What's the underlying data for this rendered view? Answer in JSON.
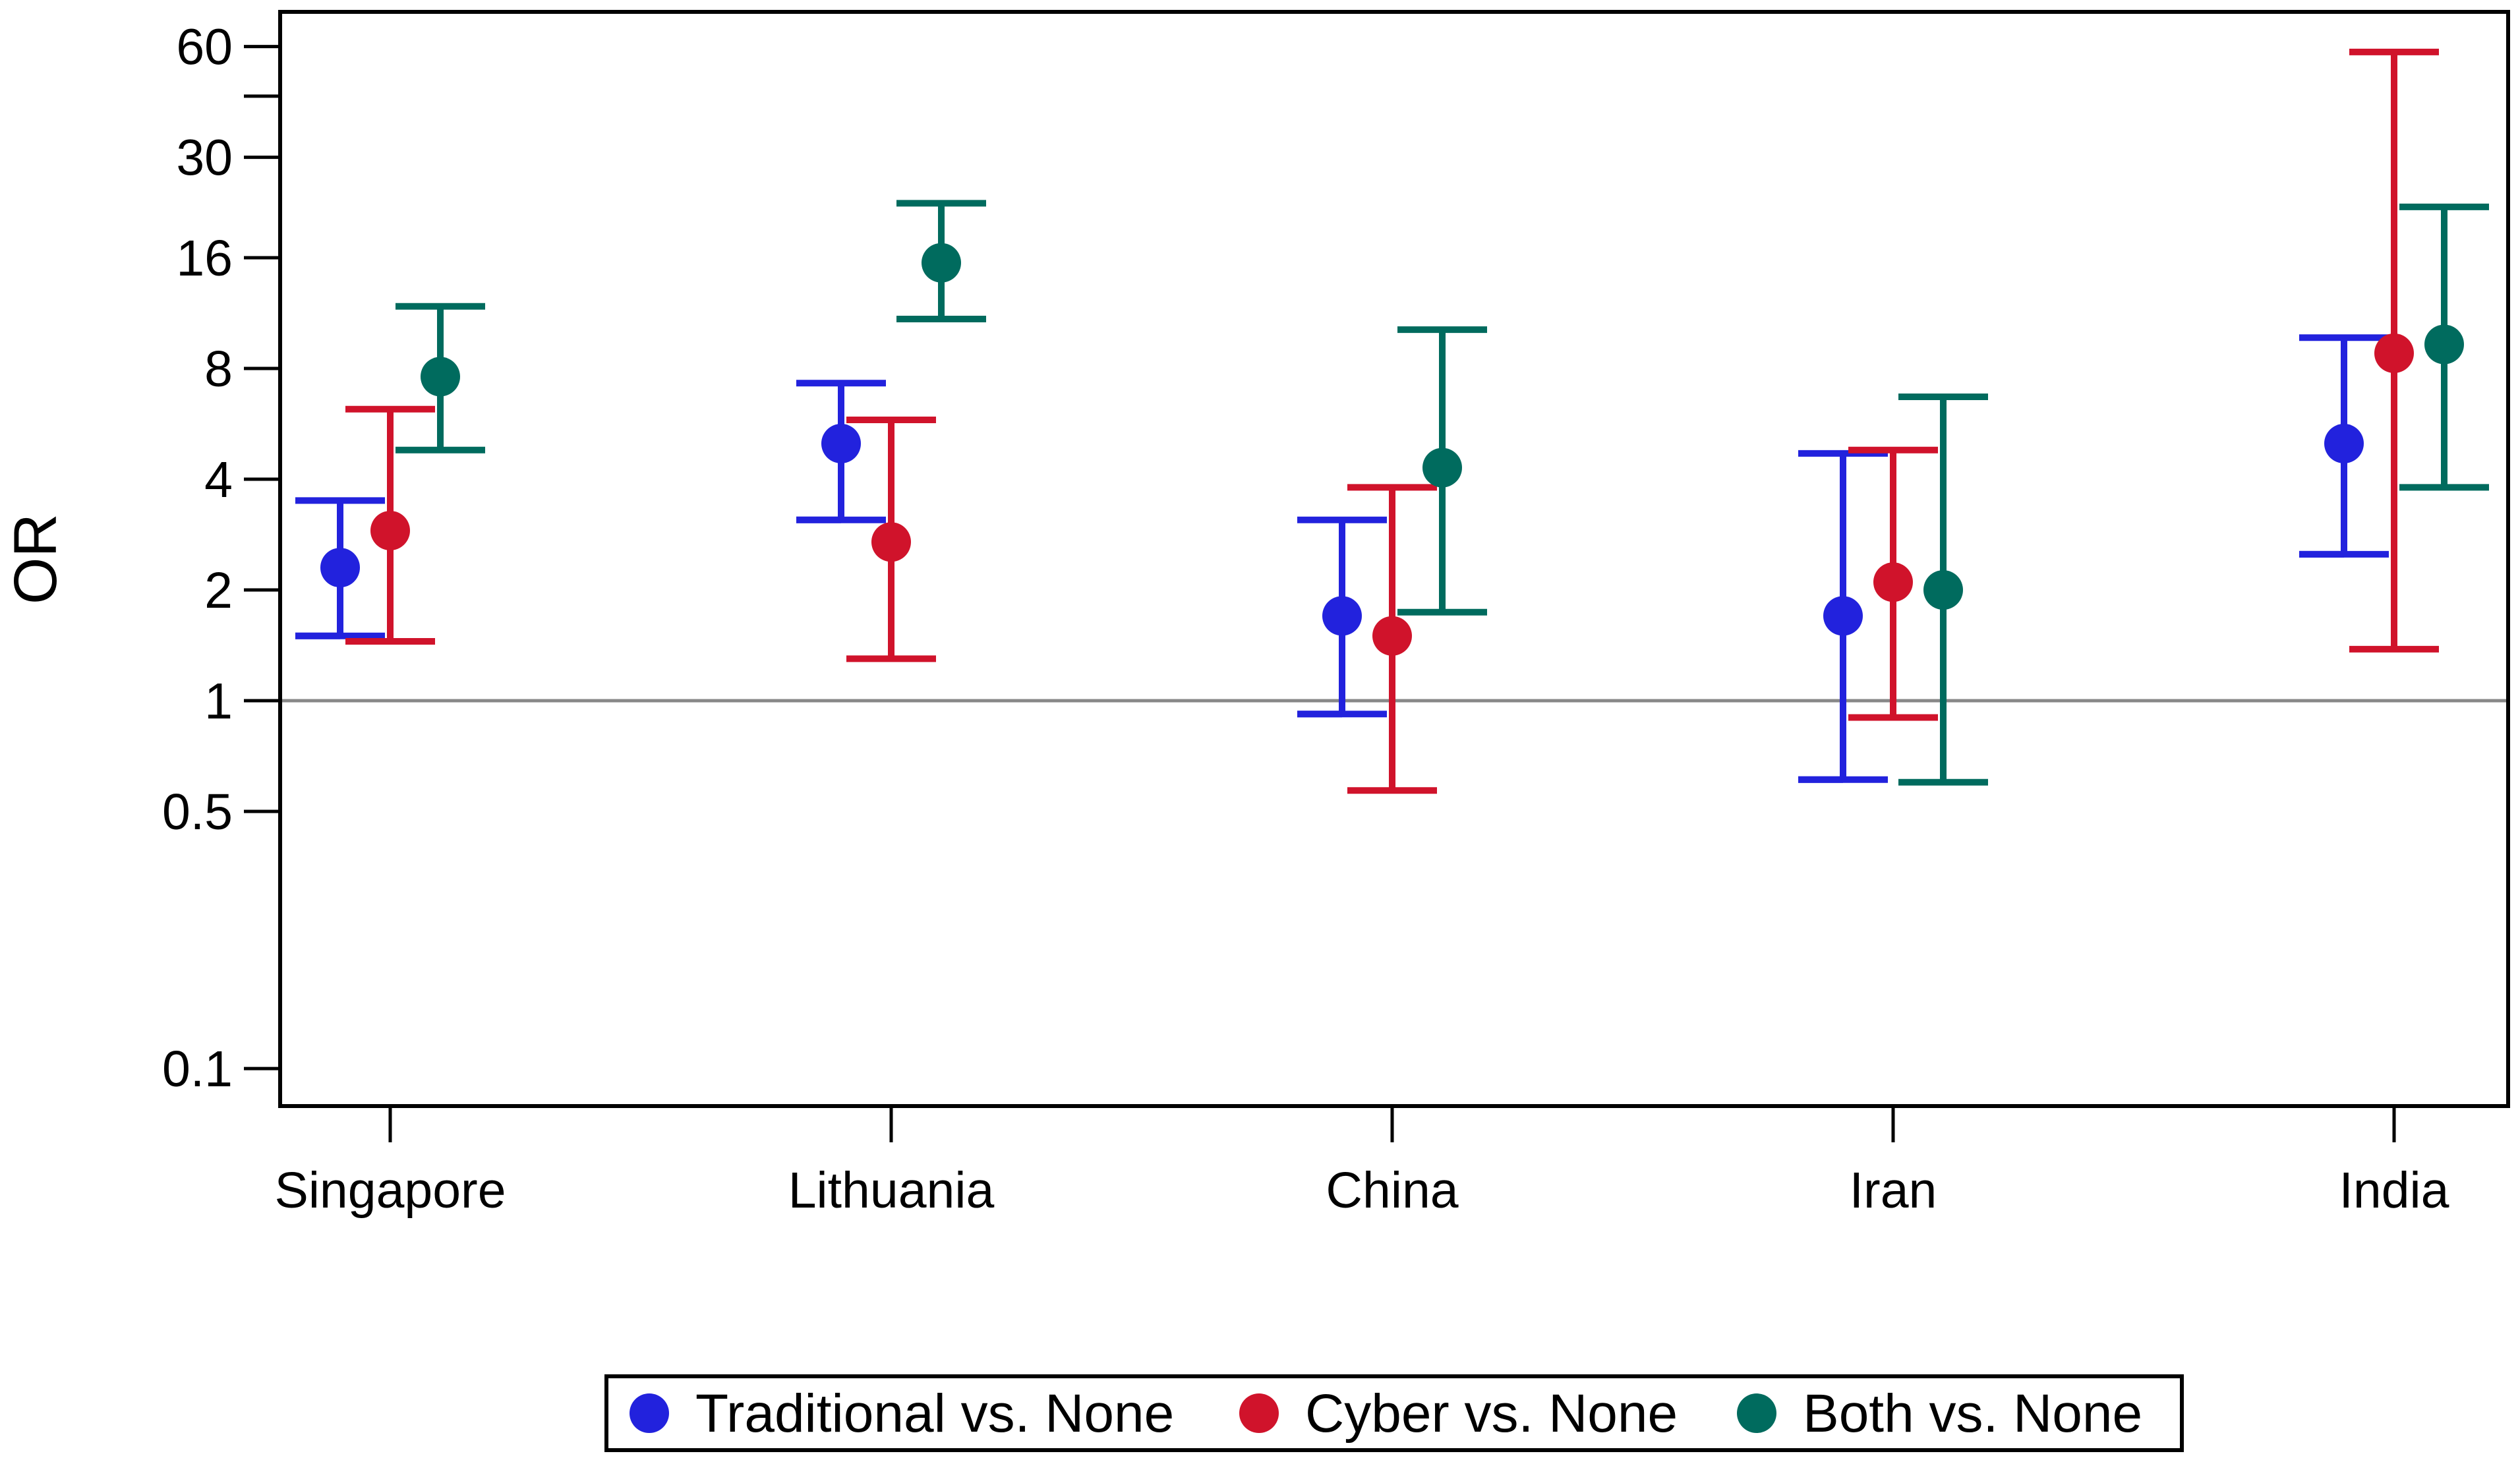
{
  "chart_data": {
    "type": "scatter",
    "subtype": "point-with-error-bars",
    "title": "",
    "xlabel": "",
    "ylabel": "OR",
    "yscale": "log",
    "ylim": [
      0.078,
      78
    ],
    "yticks": [
      0.1,
      0.5,
      1,
      2,
      4,
      8,
      16,
      30,
      60
    ],
    "ytick_labels": [
      "0.1",
      "0.5",
      "1",
      "2",
      "4",
      "8",
      "16",
      "30",
      "60"
    ],
    "reference_line": 1,
    "categories": [
      "Singapore",
      "Lithuania",
      "China",
      "Iran",
      "India"
    ],
    "series": [
      {
        "name": "Traditional vs. None",
        "color": "#2222dd",
        "values": [
          2.3,
          5.0,
          1.7,
          1.7,
          5.0
        ],
        "lower": [
          1.5,
          3.1,
          0.92,
          0.61,
          2.5
        ],
        "upper": [
          3.5,
          7.3,
          3.1,
          4.7,
          9.7
        ]
      },
      {
        "name": "Cyber vs. None",
        "color": "#d0132b",
        "values": [
          2.9,
          2.7,
          1.5,
          2.1,
          8.8
        ],
        "lower": [
          1.45,
          1.3,
          0.57,
          0.9,
          1.38
        ],
        "upper": [
          6.2,
          5.8,
          3.8,
          4.8,
          58
        ]
      },
      {
        "name": "Both vs. None",
        "color": "#006b5e",
        "values": [
          7.6,
          15.5,
          4.3,
          2.0,
          9.3
        ],
        "lower": [
          4.8,
          10.9,
          1.74,
          0.6,
          3.8
        ],
        "upper": [
          11.8,
          22.5,
          10.2,
          6.7,
          22
        ]
      }
    ],
    "legend_position": "bottom-center"
  }
}
